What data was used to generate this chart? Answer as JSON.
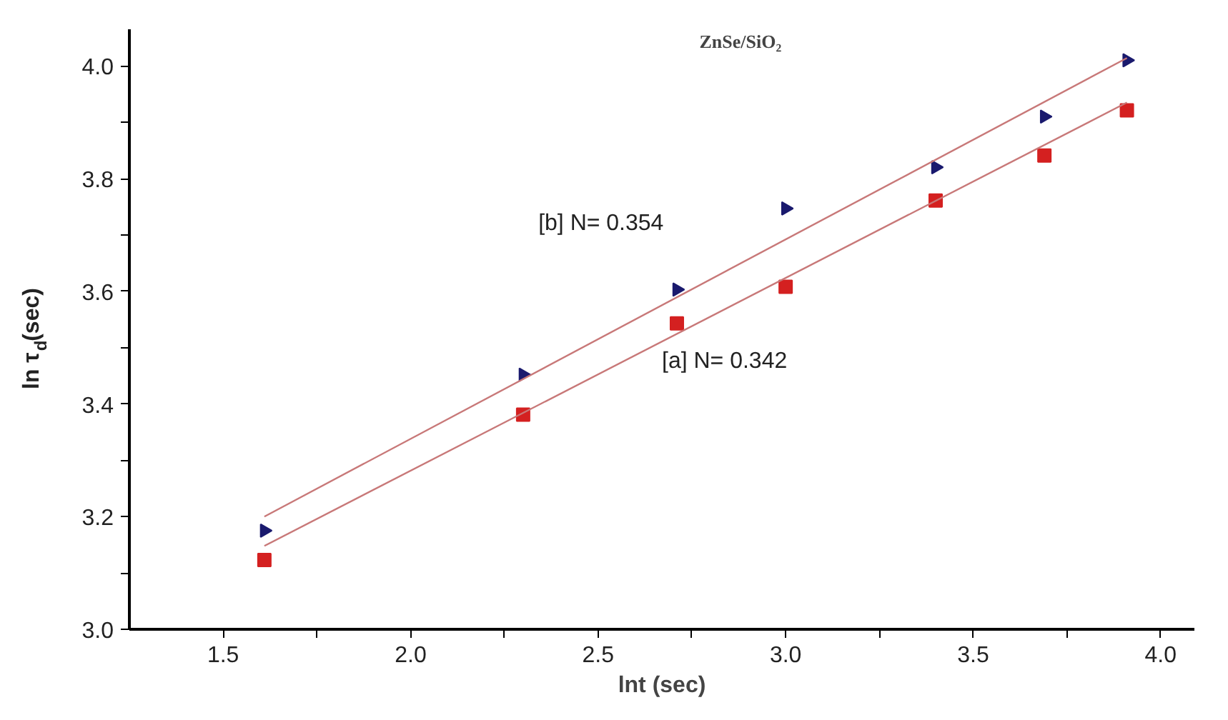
{
  "chart_data": {
    "type": "scatter",
    "title": "ZnSe/SiO₂",
    "xlabel": "lnt (sec)",
    "ylabel": "ln τ$_{d}$(sec)",
    "xlim": [
      1.25,
      4.09
    ],
    "ylim": [
      3.0,
      4.065
    ],
    "xticks": [
      1.5,
      {
        "value": 1.75,
        "label": null
      },
      "2.0",
      {
        "value": 2.25,
        "label": null
      },
      2.5,
      {
        "value": 2.75,
        "label": null
      },
      {
        "value": 3.0,
        "label": "3.0"
      },
      {
        "value": 3.25,
        "label": null
      },
      3.5,
      {
        "value": 3.75,
        "label": null
      },
      {
        "value": 4.0,
        "label": "4.0"
      }
    ],
    "yticks": [
      {
        "value": 3.0,
        "label": "3.0"
      },
      {
        "value": 3.1,
        "label": null
      },
      3.2,
      {
        "value": 3.3,
        "label": null
      },
      3.4,
      {
        "value": 3.5,
        "label": null
      },
      3.6,
      {
        "value": 3.7,
        "label": null
      },
      3.8,
      {
        "value": 3.9,
        "label": null
      },
      {
        "value": 4.0,
        "label": "4.0"
      }
    ],
    "grid": false,
    "annotations": [
      "[b] N= 0.354",
      "[a] N= 0.342"
    ],
    "series": [
      {
        "marker": "triangle",
        "color": "#1a1a6e",
        "x": [
          1.61,
          2.3,
          2.71,
          3.0,
          3.4,
          3.69,
          3.91
        ],
        "values": [
          3.175,
          3.452,
          3.603,
          3.747,
          3.82,
          3.91,
          4.01
        ]
      },
      {
        "marker": "square",
        "color": "#d42020",
        "x": [
          1.61,
          2.3,
          2.71,
          3.0,
          3.4,
          3.69,
          3.91
        ],
        "values": [
          3.123,
          3.381,
          3.543,
          3.608,
          3.761,
          3.841,
          3.921
        ]
      },
      {
        "type": "line",
        "color": "#c87878",
        "x": [
          1.61,
          3.91
        ],
        "values": [
          3.2,
          4.014
        ]
      },
      {
        "type": "line",
        "color": "#c87878",
        "x": [
          1.61,
          3.91
        ],
        "values": [
          3.148,
          3.935
        ]
      }
    ]
  }
}
